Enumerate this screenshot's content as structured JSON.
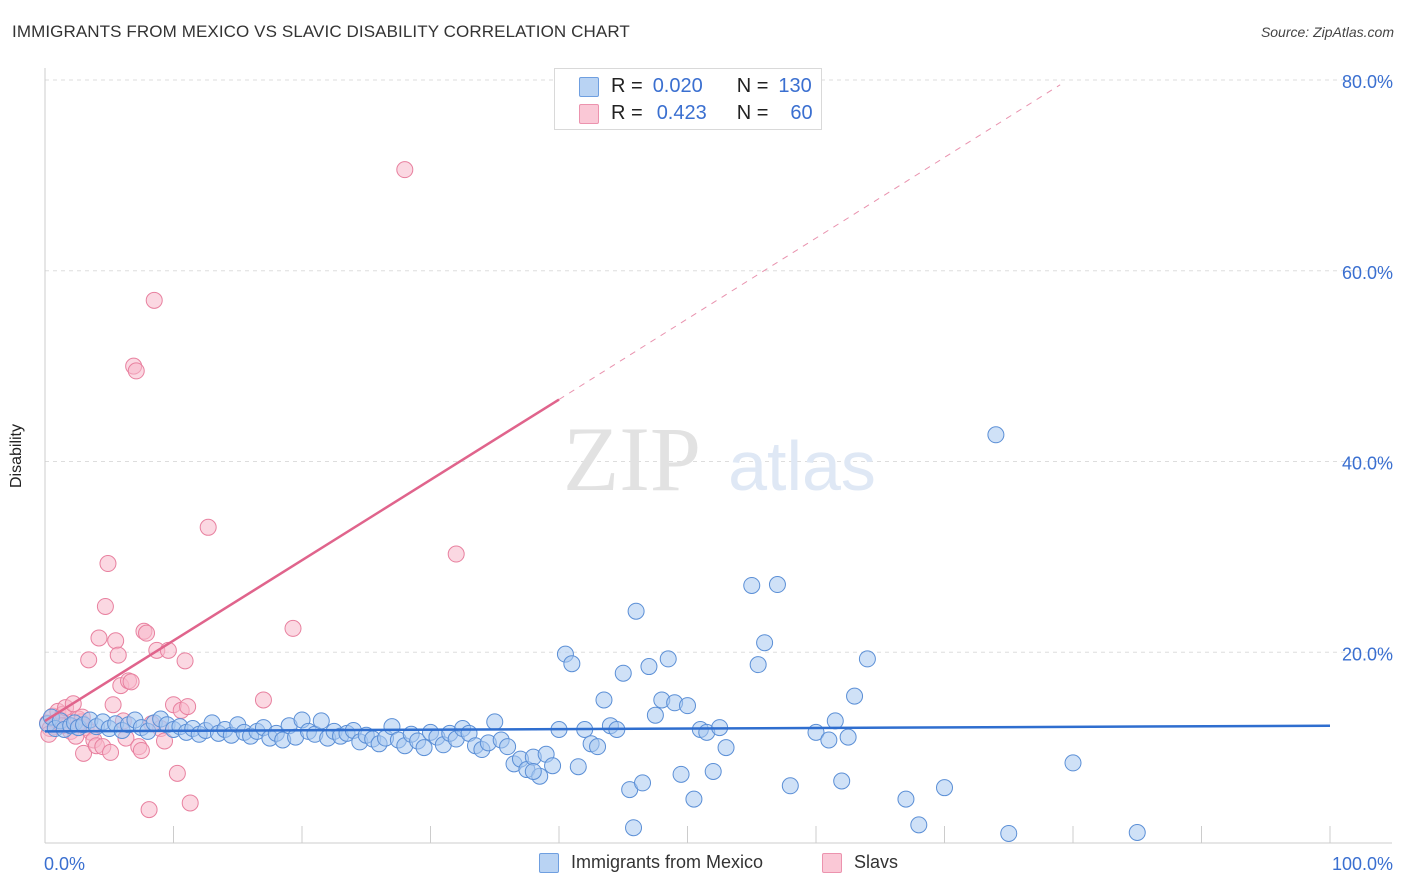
{
  "header": {
    "title": "IMMIGRANTS FROM MEXICO VS SLAVIC DISABILITY CORRELATION CHART",
    "source": "Source: ZipAtlas.com"
  },
  "watermark": {
    "zip": "ZIP",
    "atlas": "atlas"
  },
  "legend": {
    "rows": [
      {
        "r_label": "R =",
        "r_value": "0.020",
        "n_label": "N =",
        "n_value": "130"
      },
      {
        "r_label": "R =",
        "r_value": "0.423",
        "n_label": "N =",
        "n_value": "60"
      }
    ]
  },
  "bottom_legend": {
    "series1": "Immigrants from Mexico",
    "series2": "Slavs"
  },
  "colors": {
    "series1_fill": "#a8c8f0",
    "series1_stroke": "#5b8fd6",
    "series1_line": "#2f6ecf",
    "series2_fill": "#f7b8cb",
    "series2_stroke": "#e8809f",
    "series2_line": "#e0648c",
    "axis_label": "#3a6fd0",
    "grid": "#dddddd"
  },
  "chart_data": {
    "type": "scatter",
    "xlabel": "",
    "ylabel": "Disability",
    "xlim": [
      0,
      100
    ],
    "ylim": [
      0,
      80
    ],
    "x_tick_labels": {
      "left": "0.0%",
      "right": "100.0%"
    },
    "y_ticks": [
      {
        "value": 20,
        "label": "20.0%"
      },
      {
        "value": 40,
        "label": "40.0%"
      },
      {
        "value": 60,
        "label": "60.0%"
      },
      {
        "value": 80,
        "label": "80.0%"
      }
    ],
    "series": [
      {
        "name": "Immigrants from Mexico",
        "r": 0.02,
        "n": 130,
        "trend": {
          "x0": 0,
          "y0": 11.7,
          "x1": 100,
          "y1": 12.3,
          "dashed_after": null
        },
        "points": [
          [
            0.2,
            12.5
          ],
          [
            0.5,
            13.2
          ],
          [
            0.8,
            12.0
          ],
          [
            1.2,
            12.8
          ],
          [
            1.5,
            11.9
          ],
          [
            2.0,
            12.3
          ],
          [
            2.3,
            12.6
          ],
          [
            2.6,
            12.1
          ],
          [
            3.0,
            12.4
          ],
          [
            3.5,
            12.9
          ],
          [
            4.0,
            12.2
          ],
          [
            4.5,
            12.7
          ],
          [
            5.0,
            12.0
          ],
          [
            5.5,
            12.5
          ],
          [
            6.0,
            11.8
          ],
          [
            6.5,
            12.4
          ],
          [
            7.0,
            12.9
          ],
          [
            7.5,
            12.1
          ],
          [
            8.0,
            11.7
          ],
          [
            8.5,
            12.6
          ],
          [
            9.0,
            13.0
          ],
          [
            9.5,
            12.4
          ],
          [
            10.0,
            11.9
          ],
          [
            10.5,
            12.2
          ],
          [
            11.0,
            11.6
          ],
          [
            11.5,
            12.0
          ],
          [
            12.0,
            11.4
          ],
          [
            12.5,
            11.8
          ],
          [
            13.0,
            12.6
          ],
          [
            13.5,
            11.5
          ],
          [
            14.0,
            11.9
          ],
          [
            14.5,
            11.3
          ],
          [
            15.0,
            12.4
          ],
          [
            15.5,
            11.6
          ],
          [
            16.0,
            11.2
          ],
          [
            16.5,
            11.7
          ],
          [
            17.0,
            12.1
          ],
          [
            17.5,
            11.0
          ],
          [
            18.0,
            11.5
          ],
          [
            18.5,
            10.8
          ],
          [
            19.0,
            12.3
          ],
          [
            19.5,
            11.1
          ],
          [
            20.0,
            12.9
          ],
          [
            20.5,
            11.7
          ],
          [
            21.0,
            11.4
          ],
          [
            21.5,
            12.8
          ],
          [
            22.0,
            11.0
          ],
          [
            22.5,
            11.7
          ],
          [
            23.0,
            11.2
          ],
          [
            23.5,
            11.5
          ],
          [
            24.0,
            11.8
          ],
          [
            24.5,
            10.6
          ],
          [
            25.0,
            11.3
          ],
          [
            25.5,
            10.9
          ],
          [
            26.0,
            10.4
          ],
          [
            26.5,
            11.0
          ],
          [
            27.0,
            12.2
          ],
          [
            27.5,
            10.8
          ],
          [
            28.0,
            10.2
          ],
          [
            28.5,
            11.4
          ],
          [
            29.0,
            10.7
          ],
          [
            29.5,
            10.0
          ],
          [
            30.0,
            11.6
          ],
          [
            30.5,
            11.1
          ],
          [
            31.0,
            10.3
          ],
          [
            31.5,
            11.5
          ],
          [
            32.0,
            10.9
          ],
          [
            32.5,
            12.0
          ],
          [
            33.0,
            11.5
          ],
          [
            33.5,
            10.2
          ],
          [
            34.0,
            9.8
          ],
          [
            34.5,
            10.5
          ],
          [
            35.0,
            12.7
          ],
          [
            35.5,
            10.8
          ],
          [
            36.0,
            10.1
          ],
          [
            36.5,
            8.3
          ],
          [
            37.0,
            8.8
          ],
          [
            37.5,
            7.7
          ],
          [
            38.0,
            9.0
          ],
          [
            38.5,
            7.0
          ],
          [
            39.0,
            9.3
          ],
          [
            39.5,
            8.1
          ],
          [
            40.0,
            11.9
          ],
          [
            40.5,
            19.8
          ],
          [
            41.0,
            18.8
          ],
          [
            41.5,
            8.0
          ],
          [
            42.0,
            11.9
          ],
          [
            42.5,
            10.4
          ],
          [
            43.0,
            10.1
          ],
          [
            43.5,
            15.0
          ],
          [
            44.0,
            12.3
          ],
          [
            44.5,
            11.9
          ],
          [
            45.0,
            17.8
          ],
          [
            45.5,
            5.6
          ],
          [
            46.0,
            24.3
          ],
          [
            46.5,
            6.3
          ],
          [
            47.0,
            18.5
          ],
          [
            47.5,
            13.4
          ],
          [
            48.0,
            15.0
          ],
          [
            48.5,
            19.3
          ],
          [
            49.0,
            14.7
          ],
          [
            49.5,
            7.2
          ],
          [
            50.0,
            14.4
          ],
          [
            50.5,
            4.6
          ],
          [
            51.0,
            11.9
          ],
          [
            51.5,
            11.6
          ],
          [
            52.0,
            7.5
          ],
          [
            52.5,
            12.1
          ],
          [
            53.0,
            10.0
          ],
          [
            55.0,
            27.0
          ],
          [
            55.5,
            18.7
          ],
          [
            56.0,
            21.0
          ],
          [
            57.0,
            27.1
          ],
          [
            58.0,
            6.0
          ],
          [
            60.0,
            11.6
          ],
          [
            61.0,
            10.8
          ],
          [
            61.5,
            12.8
          ],
          [
            62.0,
            6.5
          ],
          [
            62.5,
            11.1
          ],
          [
            63.0,
            15.4
          ],
          [
            64.0,
            19.3
          ],
          [
            67.0,
            4.6
          ],
          [
            68.0,
            1.9
          ],
          [
            70.0,
            5.8
          ],
          [
            74.0,
            42.8
          ],
          [
            75.0,
            1.0
          ],
          [
            80.0,
            8.4
          ],
          [
            85.0,
            1.1
          ],
          [
            45.8,
            1.6
          ],
          [
            38.0,
            7.5
          ]
        ]
      },
      {
        "name": "Slavs",
        "r": 0.423,
        "n": 60,
        "trend": {
          "x0": 0,
          "y0": 12.8,
          "x1": 40,
          "y1": 46.5,
          "dashed_to_x": 79,
          "dashed_to_y": 79.5
        },
        "points": [
          [
            0.2,
            12.6
          ],
          [
            0.4,
            12.0
          ],
          [
            0.6,
            13.3
          ],
          [
            0.8,
            12.2
          ],
          [
            1.0,
            13.8
          ],
          [
            1.2,
            12.9
          ],
          [
            1.4,
            13.5
          ],
          [
            1.6,
            14.2
          ],
          [
            1.8,
            12.4
          ],
          [
            2.0,
            11.7
          ],
          [
            2.2,
            14.6
          ],
          [
            2.4,
            11.2
          ],
          [
            2.6,
            13.0
          ],
          [
            2.8,
            12.7
          ],
          [
            3.0,
            9.4
          ],
          [
            3.2,
            12.1
          ],
          [
            3.4,
            19.2
          ],
          [
            3.6,
            11.6
          ],
          [
            3.8,
            10.8
          ],
          [
            4.0,
            10.2
          ],
          [
            4.2,
            21.5
          ],
          [
            4.5,
            10.1
          ],
          [
            4.7,
            24.8
          ],
          [
            4.9,
            29.3
          ],
          [
            5.1,
            9.5
          ],
          [
            5.3,
            14.5
          ],
          [
            5.5,
            21.2
          ],
          [
            5.7,
            19.7
          ],
          [
            5.9,
            16.5
          ],
          [
            6.1,
            12.8
          ],
          [
            6.3,
            11.0
          ],
          [
            6.5,
            17.0
          ],
          [
            6.7,
            16.9
          ],
          [
            6.9,
            50.0
          ],
          [
            7.1,
            49.5
          ],
          [
            7.3,
            10.1
          ],
          [
            7.5,
            9.7
          ],
          [
            7.7,
            22.2
          ],
          [
            7.9,
            22.0
          ],
          [
            8.1,
            3.5
          ],
          [
            8.3,
            12.5
          ],
          [
            8.5,
            56.9
          ],
          [
            8.7,
            20.2
          ],
          [
            9.0,
            12.0
          ],
          [
            9.3,
            10.7
          ],
          [
            9.6,
            20.2
          ],
          [
            10.0,
            14.5
          ],
          [
            10.3,
            7.3
          ],
          [
            10.6,
            13.9
          ],
          [
            10.9,
            19.1
          ],
          [
            11.1,
            14.3
          ],
          [
            11.3,
            4.2
          ],
          [
            12.7,
            33.1
          ],
          [
            17.0,
            15.0
          ],
          [
            19.3,
            22.5
          ],
          [
            28.0,
            70.6
          ],
          [
            32.0,
            30.3
          ],
          [
            2.9,
            13.2
          ],
          [
            1.3,
            12.3
          ],
          [
            0.3,
            11.4
          ]
        ]
      }
    ]
  }
}
